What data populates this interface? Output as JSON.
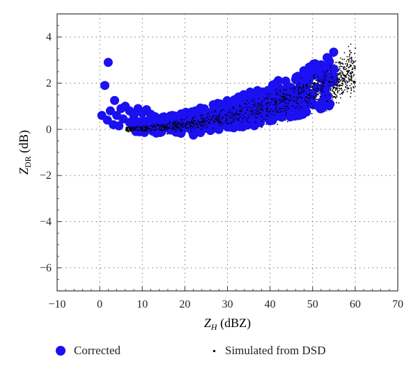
{
  "chart_data": {
    "type": "scatter",
    "xlabel_main": "Z",
    "xlabel_sub": "H",
    "xlabel_unit": " (dBZ)",
    "ylabel_main": "Z",
    "ylabel_sub": "DR",
    "ylabel_unit": " (dB)",
    "xlim": [
      -10,
      70
    ],
    "ylim": [
      -7,
      5
    ],
    "xticks": [
      -10,
      0,
      10,
      20,
      30,
      40,
      50,
      60,
      70
    ],
    "yticks": [
      -6,
      -4,
      -2,
      0,
      2,
      4
    ],
    "xtick_labels": [
      "−10",
      "0",
      "10",
      "20",
      "30",
      "40",
      "50",
      "60",
      "70"
    ],
    "ytick_labels": [
      "−6",
      "−4",
      "−2",
      "0",
      "2",
      "4"
    ],
    "grid": true,
    "legend_placement": "bottom",
    "series": [
      {
        "name": "Corrected",
        "color": "#1a10f0",
        "marker": "large-circle",
        "points": [
          [
            2,
            2.9
          ],
          [
            1.2,
            1.9
          ],
          [
            3.5,
            1.25
          ],
          [
            0.5,
            0.6
          ],
          [
            1.8,
            0.4
          ],
          [
            2.5,
            0.8
          ],
          [
            4,
            0.6
          ],
          [
            3.2,
            0.2
          ],
          [
            5,
            0.9
          ],
          [
            6,
            1.0
          ],
          [
            7,
            0.8
          ],
          [
            8,
            0.6
          ],
          [
            9,
            0.9
          ],
          [
            10,
            0.7
          ],
          [
            11,
            0.85
          ],
          [
            12,
            0.65
          ],
          [
            13,
            0.55
          ],
          [
            14,
            0.45
          ],
          [
            15,
            0.35
          ],
          [
            16,
            0.4
          ],
          [
            17,
            0.3
          ],
          [
            18,
            0.5
          ],
          [
            19,
            0.4
          ],
          [
            20,
            0.55
          ],
          [
            21,
            0.5
          ],
          [
            22,
            -0.25
          ],
          [
            26,
            -0.05
          ],
          [
            27,
            0.05
          ],
          [
            28,
            0.2
          ],
          [
            30,
            0.1
          ],
          [
            33,
            0.25
          ],
          [
            25,
            0.7
          ],
          [
            27,
            1.0
          ],
          [
            29,
            0.9
          ],
          [
            31,
            1.1
          ],
          [
            33,
            1.0
          ],
          [
            35,
            1.2
          ],
          [
            37,
            1.3
          ],
          [
            39,
            1.4
          ],
          [
            41,
            1.5
          ],
          [
            43,
            1.6
          ],
          [
            45,
            1.8
          ],
          [
            47,
            2.0
          ],
          [
            49,
            2.2
          ],
          [
            50,
            2.4
          ],
          [
            51,
            2.6
          ],
          [
            52,
            2.8
          ],
          [
            53,
            2.75
          ],
          [
            54,
            2.7
          ],
          [
            55,
            2.6
          ],
          [
            52,
            2.2
          ],
          [
            53,
            2.0
          ],
          [
            51,
            1.8
          ],
          [
            50,
            1.5
          ],
          [
            48,
            1.3
          ],
          [
            46,
            1.1
          ],
          [
            44,
            0.9
          ],
          [
            42,
            0.8
          ],
          [
            40,
            0.7
          ],
          [
            38,
            0.5
          ],
          [
            36,
            0.45
          ],
          [
            34,
            0.35
          ],
          [
            32,
            0.3
          ],
          [
            44,
            1.3
          ],
          [
            46,
            1.5
          ],
          [
            48,
            1.7
          ],
          [
            42,
            1.1
          ],
          [
            39,
            0.9
          ],
          [
            36,
            0.8
          ],
          [
            24,
            0.3
          ],
          [
            23,
            0.2
          ],
          [
            12,
            0.2
          ],
          [
            9,
            0.15
          ],
          [
            7,
            0.3
          ],
          [
            5.5,
            0.45
          ],
          [
            4.5,
            0.15
          ],
          [
            10.5,
            0.05
          ],
          [
            14,
            0.15
          ]
        ]
      },
      {
        "name": "Simulated from DSD",
        "color": "#000000",
        "marker": "small-dot"
      }
    ]
  },
  "legend": {
    "corrected_label": "Corrected",
    "simulated_label": "Simulated from DSD"
  }
}
